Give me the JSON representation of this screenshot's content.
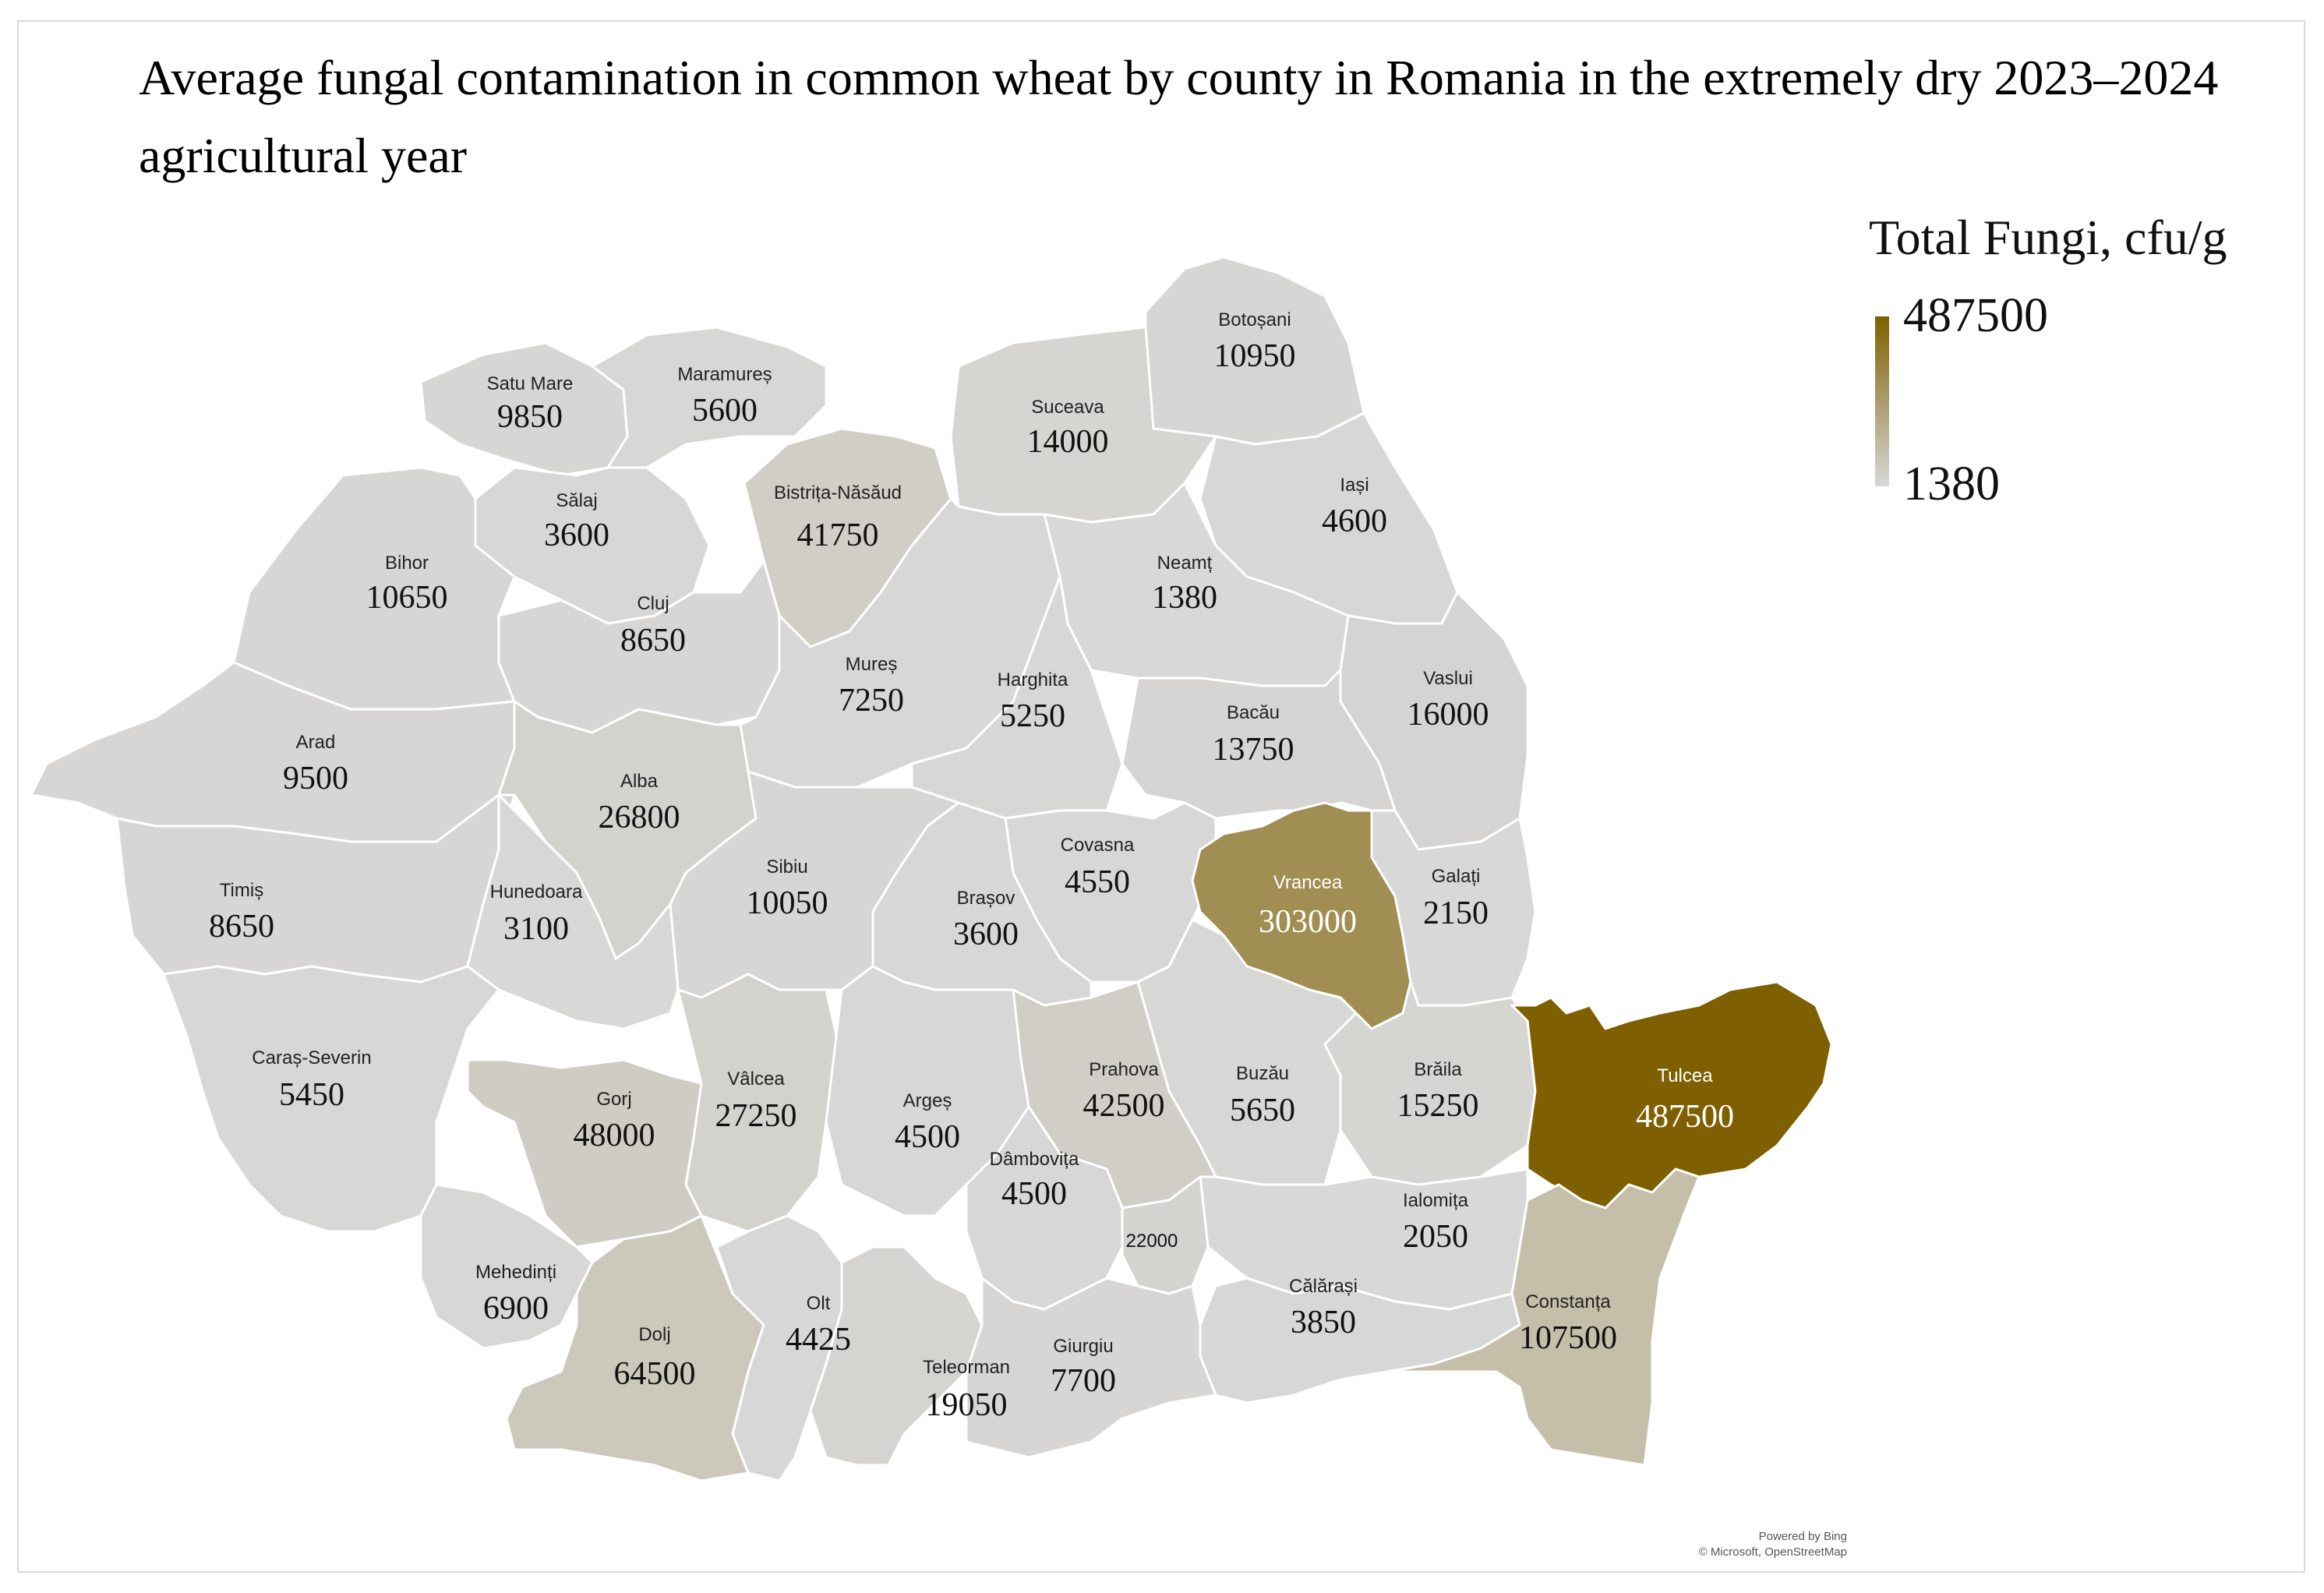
{
  "title": "Average fungal contamination in common wheat by county in Romania in the extremely dry 2023–2024 agricultural year",
  "legend": {
    "title": "Total Fungi, cfu/g",
    "max": "487500",
    "min": "1380",
    "max_value": 487500,
    "min_value": 1380,
    "color_low": "#d8d8d8",
    "color_high": "#7f6000"
  },
  "credit": {
    "line1": "Powered by Bing",
    "line2": "© Microsoft, OpenStreetMap"
  },
  "counties": [
    {
      "name": "Satu Mare",
      "value": 9850,
      "label": "9850"
    },
    {
      "name": "Maramureș",
      "value": 5600,
      "label": "5600"
    },
    {
      "name": "Botoșani",
      "value": 10950,
      "label": "10950"
    },
    {
      "name": "Suceava",
      "value": 14000,
      "label": "14000"
    },
    {
      "name": "Bistrița-Năsăud",
      "value": 41750,
      "label": "41750"
    },
    {
      "name": "Sălaj",
      "value": 3600,
      "label": "3600"
    },
    {
      "name": "Iași",
      "value": 4600,
      "label": "4600"
    },
    {
      "name": "Bihor",
      "value": 10650,
      "label": "10650"
    },
    {
      "name": "Neamț",
      "value": 1380,
      "label": "1380"
    },
    {
      "name": "Cluj",
      "value": 8650,
      "label": "8650"
    },
    {
      "name": "Mureș",
      "value": 7250,
      "label": "7250"
    },
    {
      "name": "Harghita",
      "value": 5250,
      "label": "5250"
    },
    {
      "name": "Vaslui",
      "value": 16000,
      "label": "16000"
    },
    {
      "name": "Bacău",
      "value": 13750,
      "label": "13750"
    },
    {
      "name": "Arad",
      "value": 9500,
      "label": "9500"
    },
    {
      "name": "Alba",
      "value": 26800,
      "label": "26800"
    },
    {
      "name": "Sibiu",
      "value": 10050,
      "label": "10050"
    },
    {
      "name": "Covasna",
      "value": 4550,
      "label": "4550"
    },
    {
      "name": "Vrancea",
      "value": 303000,
      "label": "303000"
    },
    {
      "name": "Galați",
      "value": 2150,
      "label": "2150"
    },
    {
      "name": "Timiș",
      "value": 8650,
      "label": "8650"
    },
    {
      "name": "Hunedoara",
      "value": 3100,
      "label": "3100"
    },
    {
      "name": "Brașov",
      "value": 3600,
      "label": "3600"
    },
    {
      "name": "Caraș-Severin",
      "value": 5450,
      "label": "5450"
    },
    {
      "name": "Buzău",
      "value": 5650,
      "label": "5650"
    },
    {
      "name": "Vâlcea",
      "value": 27250,
      "label": "27250"
    },
    {
      "name": "Prahova",
      "value": 42500,
      "label": "42500"
    },
    {
      "name": "Brăila",
      "value": 15250,
      "label": "15250"
    },
    {
      "name": "Tulcea",
      "value": 487500,
      "label": "487500"
    },
    {
      "name": "Gorj",
      "value": 48000,
      "label": "48000"
    },
    {
      "name": "Argeș",
      "value": 4500,
      "label": "4500"
    },
    {
      "name": "Dâmbovița",
      "value": 4500,
      "label": "4500"
    },
    {
      "name": "Ialomița",
      "value": 2050,
      "label": "2050"
    },
    {
      "name": "",
      "value": 22000,
      "label": "22000"
    },
    {
      "name": "Mehedinți",
      "value": 6900,
      "label": "6900"
    },
    {
      "name": "Olt",
      "value": 4425,
      "label": "4425"
    },
    {
      "name": "Călărași",
      "value": 3850,
      "label": "3850"
    },
    {
      "name": "Constanța",
      "value": 107500,
      "label": "107500"
    },
    {
      "name": "Dolj",
      "value": 64500,
      "label": "64500"
    },
    {
      "name": "Teleorman",
      "value": 19050,
      "label": "19050"
    },
    {
      "name": "Giurgiu",
      "value": 7700,
      "label": "7700"
    }
  ]
}
